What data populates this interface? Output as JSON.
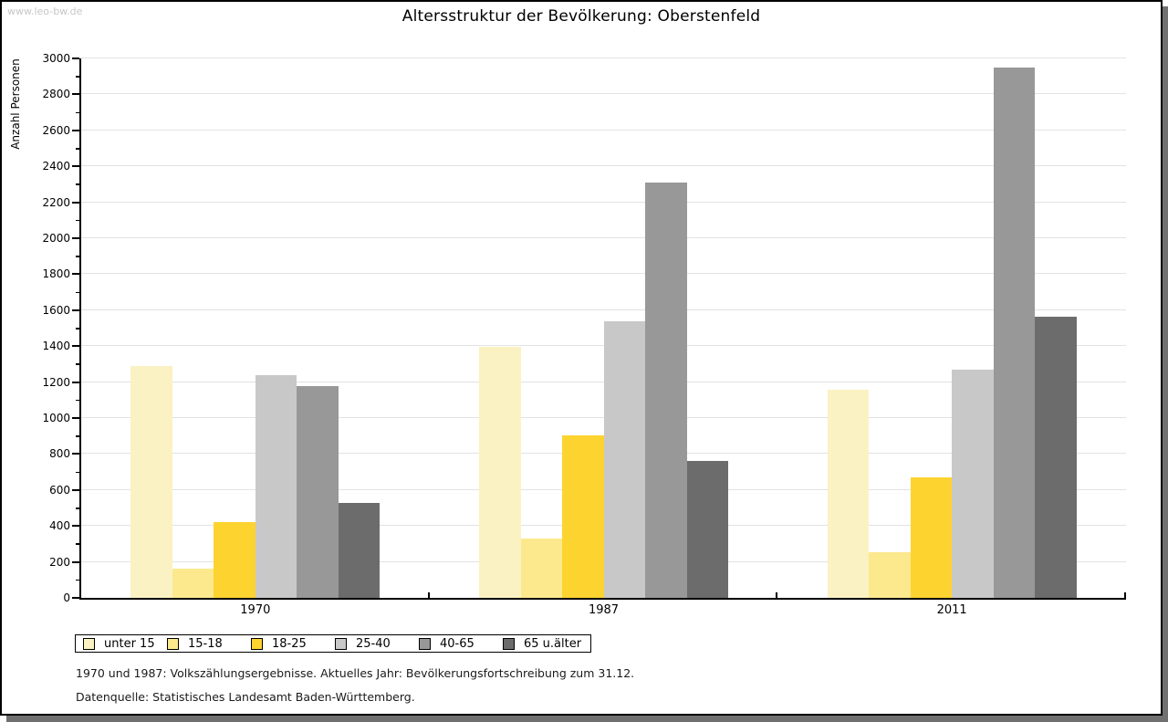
{
  "page": {
    "watermark": "www.leo-bw.de"
  },
  "chart_data": {
    "type": "bar",
    "title": "Altersstruktur der Bevölkerung: Oberstenfeld",
    "xlabel": "",
    "ylabel": "Anzahl Personen",
    "ylim": [
      0,
      3000
    ],
    "ytick_step": 200,
    "ytick_minor_step": 100,
    "grid": true,
    "legend_position": "bottom",
    "categories": [
      "1970",
      "1987",
      "2011"
    ],
    "series": [
      {
        "name": "unter 15",
        "color": "#FAF2C2",
        "values": [
          1290,
          1395,
          1155
        ]
      },
      {
        "name": "15-18",
        "color": "#FCE98E",
        "values": [
          165,
          330,
          255
        ]
      },
      {
        "name": "18-25",
        "color": "#FDD330",
        "values": [
          420,
          905,
          670
        ]
      },
      {
        "name": "25-40",
        "color": "#C8C8C9",
        "values": [
          1240,
          1540,
          1270
        ]
      },
      {
        "name": "40-65",
        "color": "#989898",
        "values": [
          1180,
          2310,
          2950
        ]
      },
      {
        "name": "65 u.älter",
        "color": "#6C6C6C",
        "values": [
          530,
          760,
          1565
        ]
      }
    ]
  },
  "footnotes": {
    "line1": "1970 und 1987: Volkszählungsergebnisse. Aktuelles Jahr: Bevölkerungsfortschreibung zum 31.12.",
    "line2": "Datenquelle: Statistisches Landesamt Baden-Württemberg."
  }
}
